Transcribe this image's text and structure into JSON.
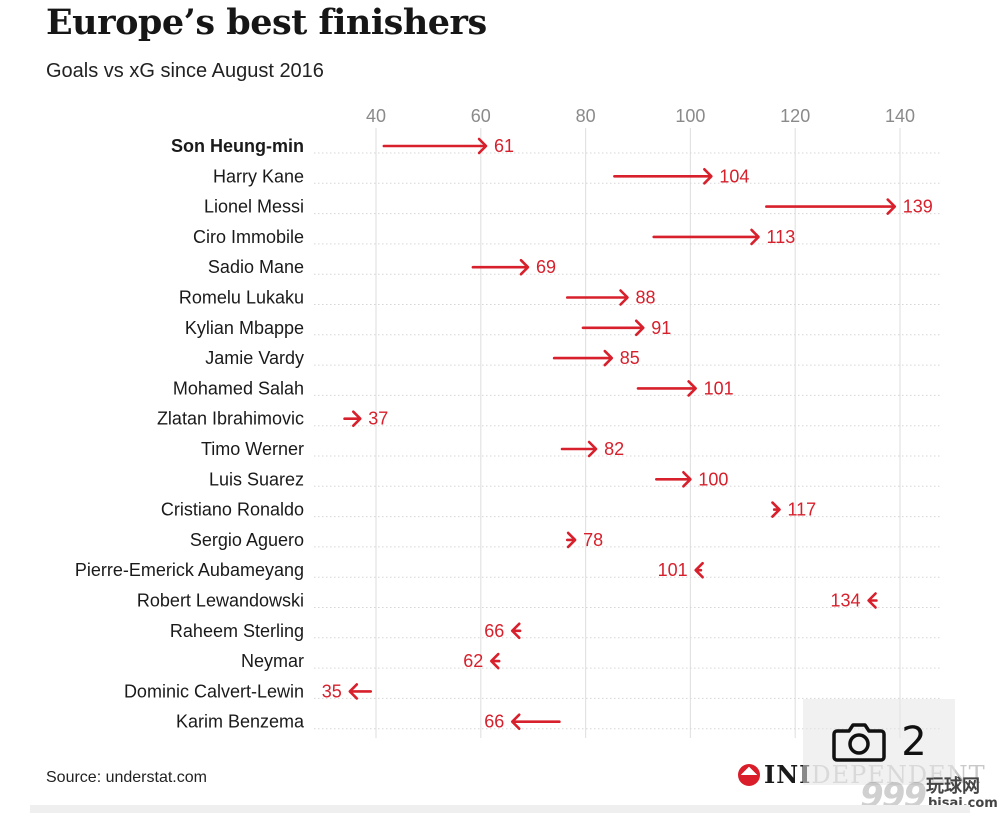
{
  "title": "Europe’s best finishers",
  "subtitle": "Goals vs xG since August 2016",
  "source": "Source: understat.com",
  "logo": {
    "text_strong": "INDEPENDENT",
    "visible_strong": "INI",
    "visible_faded": "DEPENDENT"
  },
  "photo_badge": {
    "icon": "camera-icon",
    "count": "2"
  },
  "watermark": {
    "number": "999",
    "chinese": "玩球网",
    "url": "bisai.com"
  },
  "colors": {
    "accent": "#d7202c",
    "grid": "#e3e3e3",
    "text": "#1a1a1a",
    "axis_text": "#8a8a8a"
  },
  "chart_data": {
    "type": "dumbbell-arrow",
    "title": "Europe’s best finishers",
    "subtitle": "Goals vs xG since August 2016",
    "xlim": [
      30,
      145
    ],
    "ticks": [
      40,
      60,
      80,
      100,
      120,
      140
    ],
    "grid": true,
    "highlight": "Son Heung-min",
    "players": [
      {
        "name": "Son Heung-min",
        "xg": 41.5,
        "goals": 61
      },
      {
        "name": "Harry Kane",
        "xg": 85.5,
        "goals": 104
      },
      {
        "name": "Lionel Messi",
        "xg": 114.5,
        "goals": 139
      },
      {
        "name": "Ciro Immobile",
        "xg": 93,
        "goals": 113
      },
      {
        "name": "Sadio Mane",
        "xg": 58.5,
        "goals": 69
      },
      {
        "name": "Romelu Lukaku",
        "xg": 76.5,
        "goals": 88
      },
      {
        "name": "Kylian Mbappe",
        "xg": 79.5,
        "goals": 91
      },
      {
        "name": "Jamie Vardy",
        "xg": 74,
        "goals": 85
      },
      {
        "name": "Mohamed Salah",
        "xg": 90,
        "goals": 101
      },
      {
        "name": "Zlatan Ibrahimovic",
        "xg": 34,
        "goals": 37
      },
      {
        "name": "Timo Werner",
        "xg": 75.5,
        "goals": 82
      },
      {
        "name": "Luis Suarez",
        "xg": 93.5,
        "goals": 100
      },
      {
        "name": "Cristiano Ronaldo",
        "xg": 116,
        "goals": 117
      },
      {
        "name": "Sergio Aguero",
        "xg": 76.5,
        "goals": 78
      },
      {
        "name": "Pierre-Emerick Aubameyang",
        "xg": 102,
        "goals": 101
      },
      {
        "name": "Robert Lewandowski",
        "xg": 135.5,
        "goals": 134
      },
      {
        "name": "Raheem Sterling",
        "xg": 67.5,
        "goals": 66
      },
      {
        "name": "Neymar",
        "xg": 63.5,
        "goals": 62
      },
      {
        "name": "Dominic Calvert-Lewin",
        "xg": 39,
        "goals": 35
      },
      {
        "name": "Karim Benzema",
        "xg": 75,
        "goals": 66
      }
    ]
  }
}
